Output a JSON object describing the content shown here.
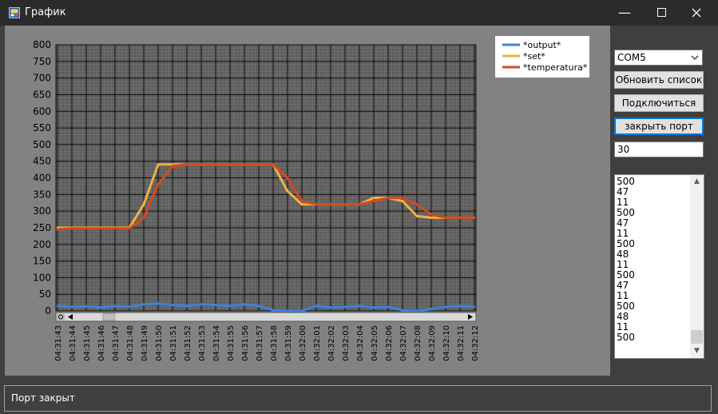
{
  "window": {
    "title": "График",
    "minimize_icon": "minimize-icon",
    "maximize_icon": "maximize-icon",
    "close_icon": "close-icon"
  },
  "controls": {
    "port_select": "COM5",
    "refresh_button": "Обновить список",
    "connect_button": "Подключиться",
    "close_port_button": "закрыть порт",
    "value_input": "30",
    "serial_log": [
      "500",
      "47",
      "11",
      "500",
      "47",
      "11",
      "500",
      "48",
      "11",
      "500",
      "47",
      "11",
      "500",
      "48",
      "11",
      "500"
    ]
  },
  "status": {
    "text": "Порт закрыт"
  },
  "colors": {
    "output": "#3c82dc",
    "set": "#f0b040",
    "temperatura": "#d24a1e",
    "plot_bg": "#5e5e5e",
    "panel_bg": "#828282"
  },
  "chart_data": {
    "type": "line",
    "ylim": [
      0,
      800
    ],
    "yticks": [
      "800",
      "750",
      "700",
      "650",
      "600",
      "550",
      "500",
      "450",
      "400",
      "350",
      "300",
      "250",
      "200",
      "150",
      "100",
      "50",
      "0"
    ],
    "x": [
      "04:31:43",
      "04:31:44",
      "04:31:45",
      "04:31:46",
      "04:31:47",
      "04:31:48",
      "04:31:49",
      "04:31:50",
      "04:31:51",
      "04:31:52",
      "04:31:53",
      "04:31:54",
      "04:31:55",
      "04:31:56",
      "04:31:57",
      "04:31:58",
      "04:31:59",
      "04:32:00",
      "04:32:01",
      "04:32:02",
      "04:32:03",
      "04:32:04",
      "04:32:05",
      "04:32:06",
      "04:32:07",
      "04:32:08",
      "04:32:09",
      "04:32:10",
      "04:32:11",
      "04:32:12"
    ],
    "grid": true,
    "legend_position": "top-right",
    "series": [
      {
        "name": "*output*",
        "values": [
          15,
          12,
          14,
          10,
          15,
          12,
          20,
          22,
          18,
          15,
          20,
          18,
          15,
          20,
          15,
          2,
          0,
          0,
          15,
          10,
          12,
          15,
          10,
          12,
          2,
          0,
          5,
          12,
          15,
          12
        ]
      },
      {
        "name": "*set*",
        "values": [
          250,
          250,
          250,
          250,
          250,
          250,
          320,
          440,
          440,
          440,
          440,
          440,
          440,
          440,
          440,
          440,
          360,
          320,
          320,
          320,
          320,
          320,
          340,
          340,
          330,
          285,
          280,
          280,
          280,
          280
        ]
      },
      {
        "name": "*temperatura*",
        "values": [
          245,
          248,
          248,
          248,
          248,
          248,
          280,
          380,
          435,
          440,
          440,
          440,
          440,
          440,
          440,
          440,
          400,
          330,
          320,
          320,
          320,
          320,
          330,
          340,
          340,
          320,
          290,
          280,
          280,
          280
        ]
      }
    ]
  }
}
